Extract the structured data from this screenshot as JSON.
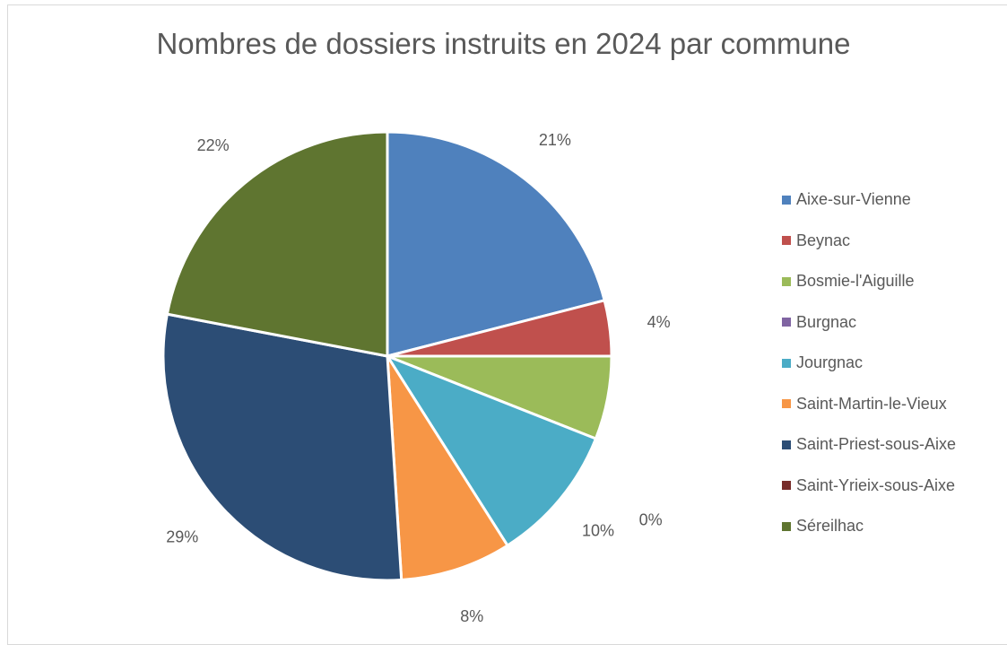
{
  "chart_data": {
    "type": "pie",
    "title": "Nombres de dossiers instruits en 2024 par commune",
    "legend_position": "right",
    "slices": [
      {
        "label": "Aixe-sur-Vienne",
        "value": 21,
        "display": "21%",
        "color": "#4f81bd"
      },
      {
        "label": "Beynac",
        "value": 4,
        "display": "4%",
        "color": "#c0504d"
      },
      {
        "label": "Bosmie-l'Aiguille",
        "value": 6,
        "display": "",
        "color": "#9bbb59"
      },
      {
        "label": "Burgnac",
        "value": 0,
        "display": "0%",
        "color": "#8064a2"
      },
      {
        "label": "Jourgnac",
        "value": 10,
        "display": "10%",
        "color": "#4bacc6"
      },
      {
        "label": "Saint-Martin-le-Vieux",
        "value": 8,
        "display": "8%",
        "color": "#f79646"
      },
      {
        "label": "Saint-Priest-sous-Aixe",
        "value": 29,
        "display": "29%",
        "color": "#2c4d75"
      },
      {
        "label": "Saint-Yrieix-sous-Aixe",
        "value": 0,
        "display": "",
        "color": "#772c2a"
      },
      {
        "label": "Séreilhac",
        "value": 22,
        "display": "22%",
        "color": "#5f7530"
      }
    ]
  }
}
